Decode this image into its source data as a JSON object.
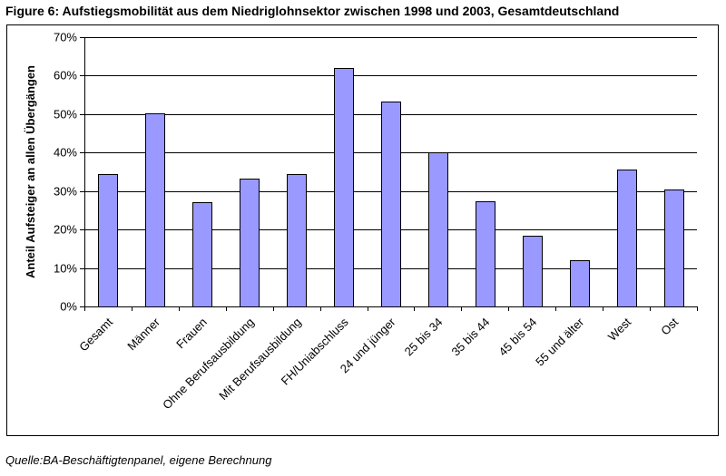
{
  "figure": {
    "title": "Figure 6: Aufstiegsmobilität aus dem Niedriglohnsektor zwischen 1998 und 2003, Gesamtdeutschland",
    "source": "Quelle:BA-Beschäftigtenpanel, eigene Berechnung"
  },
  "chart_data": {
    "type": "bar",
    "title": "",
    "xlabel": "",
    "ylabel": "Anteil Aufsteiger an allen Übergängen",
    "categories": [
      "Gesamt",
      "Männer",
      "Frauen",
      "Ohne Berufsausbildung",
      "Mit Berufsausbildung",
      "FH/Uniabschluss",
      "24 und jünger",
      "25 bis 34",
      "35 bis 44",
      "45 bis 54",
      "55 und älter",
      "West",
      "Ost"
    ],
    "values": [
      0.343,
      0.503,
      0.27,
      0.332,
      0.344,
      0.62,
      0.533,
      0.401,
      0.274,
      0.183,
      0.12,
      0.355,
      0.304
    ],
    "ylim": [
      0,
      0.7
    ],
    "yticks": [
      0,
      0.1,
      0.2,
      0.3,
      0.4,
      0.5,
      0.6,
      0.7
    ],
    "ytick_labels": [
      "0%",
      "10%",
      "20%",
      "30%",
      "40%",
      "50%",
      "60%",
      "70%"
    ],
    "grid": true,
    "legend": "none",
    "colors": {
      "bar_fill": "#9999ff",
      "bar_stroke": "#000000",
      "grid": "#000000",
      "plot_bg": "#ffffff"
    }
  }
}
